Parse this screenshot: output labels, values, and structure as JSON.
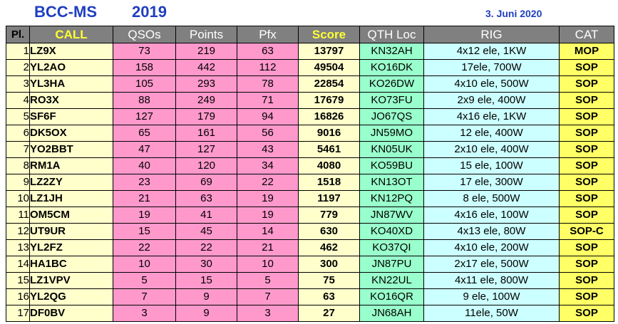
{
  "header": {
    "title": "BCC-MS",
    "year": "2019",
    "date": "3. Juni 2020"
  },
  "columns": {
    "pl": "Pl.",
    "call": "CALL",
    "qsos": "QSOs",
    "points": "Points",
    "pfx": "Pfx",
    "score": "Score",
    "qth": "QTH Loc",
    "rig": "RIG",
    "cat": "CAT"
  },
  "rows": [
    {
      "pl": "1",
      "call": "LZ9X",
      "qsos": "73",
      "points": "219",
      "pfx": "63",
      "score": "13797",
      "qth": "KN32AH",
      "rig": "4x12 ele, 1KW",
      "cat": "MOP"
    },
    {
      "pl": "2",
      "call": "YL2AO",
      "qsos": "158",
      "points": "442",
      "pfx": "112",
      "score": "49504",
      "qth": "KO16DK",
      "rig": "17ele, 700W",
      "cat": "SOP"
    },
    {
      "pl": "3",
      "call": "YL3HA",
      "qsos": "105",
      "points": "293",
      "pfx": "78",
      "score": "22854",
      "qth": "KO26DW",
      "rig": "4x10 ele, 500W",
      "cat": "SOP"
    },
    {
      "pl": "4",
      "call": "RO3X",
      "qsos": "88",
      "points": "249",
      "pfx": "71",
      "score": "17679",
      "qth": "KO73FU",
      "rig": "2x9 ele, 400W",
      "cat": "SOP"
    },
    {
      "pl": "5",
      "call": "SF6F",
      "qsos": "127",
      "points": "179",
      "pfx": "94",
      "score": "16826",
      "qth": "JO67QS",
      "rig": "4x16 ele, 1KW",
      "cat": "SOP"
    },
    {
      "pl": "6",
      "call": "DK5OX",
      "qsos": "65",
      "points": "161",
      "pfx": "56",
      "score": "9016",
      "qth": "JN59MO",
      "rig": "12 ele, 400W",
      "cat": "SOP"
    },
    {
      "pl": "7",
      "call": "YO2BBT",
      "qsos": "47",
      "points": "127",
      "pfx": "43",
      "score": "5461",
      "qth": "KN05UK",
      "rig": "2x10 ele, 400W",
      "cat": "SOP"
    },
    {
      "pl": "8",
      "call": "RM1A",
      "qsos": "40",
      "points": "120",
      "pfx": "34",
      "score": "4080",
      "qth": "KO59BU",
      "rig": "15 ele, 100W",
      "cat": "SOP"
    },
    {
      "pl": "9",
      "call": "LZ2ZY",
      "qsos": "23",
      "points": "69",
      "pfx": "22",
      "score": "1518",
      "qth": "KN13OT",
      "rig": "17 ele, 300W",
      "cat": "SOP"
    },
    {
      "pl": "10",
      "call": "LZ1JH",
      "qsos": "21",
      "points": "63",
      "pfx": "19",
      "score": "1197",
      "qth": "KN12PQ",
      "rig": "8 ele, 500W",
      "cat": "SOP"
    },
    {
      "pl": "11",
      "call": "OM5CM",
      "qsos": "19",
      "points": "41",
      "pfx": "19",
      "score": "779",
      "qth": "JN87WV",
      "rig": "4x16 ele, 100W",
      "cat": "SOP"
    },
    {
      "pl": "12",
      "call": "UT9UR",
      "qsos": "15",
      "points": "45",
      "pfx": "14",
      "score": "630",
      "qth": "KO40XD",
      "rig": "4x13 ele, 80W",
      "cat": "SOP-C"
    },
    {
      "pl": "13",
      "call": "YL2FZ",
      "qsos": "22",
      "points": "22",
      "pfx": "21",
      "score": "462",
      "qth": "KO37QI",
      "rig": "4x10 ele, 200W",
      "cat": "SOP"
    },
    {
      "pl": "14",
      "call": "HA1BC",
      "qsos": "10",
      "points": "30",
      "pfx": "10",
      "score": "300",
      "qth": "JN87PU",
      "rig": "2x17 ele, 500W",
      "cat": "SOP"
    },
    {
      "pl": "15",
      "call": "LZ1VPV",
      "qsos": "5",
      "points": "15",
      "pfx": "5",
      "score": "75",
      "qth": "KN22UL",
      "rig": "4x11 ele, 800W",
      "cat": "SOP"
    },
    {
      "pl": "16",
      "call": "YL2QG",
      "qsos": "7",
      "points": "9",
      "pfx": "7",
      "score": "63",
      "qth": "KO16QR",
      "rig": "9 ele, 100W",
      "cat": "SOP"
    },
    {
      "pl": "17",
      "call": "DF0BV",
      "qsos": "3",
      "points": "9",
      "pfx": "3",
      "score": "27",
      "qth": "JN68AH",
      "rig": "11ele, 50W",
      "cat": "SOP"
    }
  ],
  "colors": {
    "title": "#1f3fbf",
    "header_bg": "#808080",
    "call_bg": "#ffffcc",
    "numbers_bg": "#ff99cc",
    "qth_bg": "#99ffcc",
    "rig_bg": "#ccffff",
    "cat_bg": "#ffff66"
  }
}
